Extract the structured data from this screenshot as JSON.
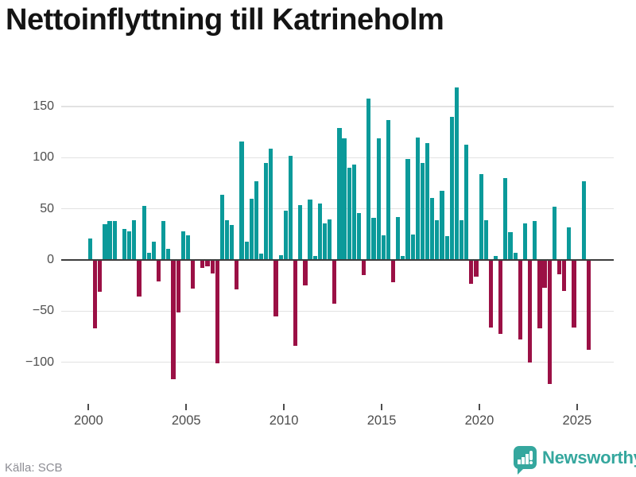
{
  "title": "Nettoinflyttning till Katrineholm",
  "source": "Källa: SCB",
  "brand": {
    "name": "Newsworthy",
    "icon": "bar-chart-speech-bubble-icon",
    "color": "#35a79e"
  },
  "colors": {
    "positive": "#0b9a9a",
    "negative": "#9b1045",
    "zero_line": "#3d3d3d",
    "gridline": "#e2e2e2",
    "axis_text": "#4d4d4d",
    "title_text": "#141414",
    "source_text": "#8d8d94",
    "background": "#ffffff"
  },
  "chart_data": {
    "type": "bar",
    "title": "Nettoinflyttning till Katrineholm",
    "frequency": "quarterly",
    "start_period": "2000 Q1",
    "end_period": "2025 Q3",
    "x_tick_labels": [
      "2000",
      "2005",
      "2010",
      "2015",
      "2020",
      "2025"
    ],
    "y_tick_values": [
      150,
      100,
      50,
      0,
      -50,
      -100
    ],
    "y_tick_labels": [
      "150",
      "100",
      "50",
      "0",
      "−50",
      "−100"
    ],
    "ylim": [
      -130,
      175
    ],
    "grid": true,
    "legend": false,
    "values": [
      21,
      -67,
      -31,
      35,
      38,
      38,
      0,
      30,
      28,
      39,
      -36,
      53,
      7,
      18,
      -21,
      38,
      11,
      -117,
      -51,
      28,
      24,
      -28,
      0,
      -8,
      -6,
      -13,
      -101,
      64,
      39,
      34,
      -29,
      116,
      18,
      60,
      77,
      6,
      95,
      109,
      -55,
      5,
      48,
      102,
      -84,
      54,
      -25,
      59,
      4,
      55,
      36,
      40,
      -43,
      129,
      119,
      90,
      93,
      46,
      -15,
      158,
      41,
      119,
      24,
      137,
      -22,
      42,
      4,
      99,
      25,
      120,
      95,
      114,
      61,
      39,
      68,
      23,
      140,
      169,
      39,
      113,
      -23,
      -16,
      84,
      39,
      -66,
      4,
      -72,
      80,
      27,
      7,
      -78,
      36,
      -100,
      38,
      -67,
      -27,
      -121,
      52,
      -14,
      -30,
      32,
      -66,
      0,
      77,
      -88
    ]
  }
}
